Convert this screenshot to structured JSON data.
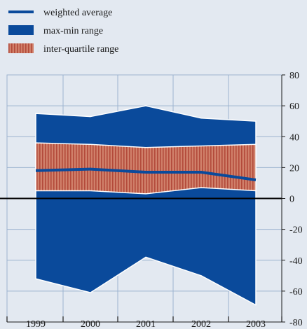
{
  "chart_data": {
    "type": "area",
    "title": "",
    "xlabel": "",
    "ylabel": "",
    "categories": [
      "1999",
      "2000",
      "2001",
      "2002",
      "2003"
    ],
    "ylim": [
      -80,
      80
    ],
    "yticks": [
      80,
      60,
      40,
      20,
      0,
      -20,
      -40,
      -60,
      -80
    ],
    "grid": true,
    "legend_position": "top-left",
    "colors": {
      "background": "#e3e9f1",
      "max_min_range": "#0a4a9b",
      "inter_quartile_range": "#d0806a",
      "inter_quartile_hatch": "#b34a3a",
      "weighted_average": "#0a4a9b",
      "grid": "#9cb3cf",
      "zero_line": "#000000"
    },
    "series": [
      {
        "name": "max-min range",
        "kind": "band",
        "upper": [
          55,
          53,
          60,
          52,
          50
        ],
        "lower": [
          -52,
          -61,
          -38,
          -50,
          -69
        ]
      },
      {
        "name": "inter-quartile range",
        "kind": "band",
        "upper": [
          36,
          35,
          33,
          34,
          35
        ],
        "lower": [
          5,
          5,
          3,
          7,
          5
        ]
      },
      {
        "name": "weighted average",
        "kind": "line",
        "values": [
          18,
          19,
          17,
          17,
          12
        ]
      }
    ]
  }
}
